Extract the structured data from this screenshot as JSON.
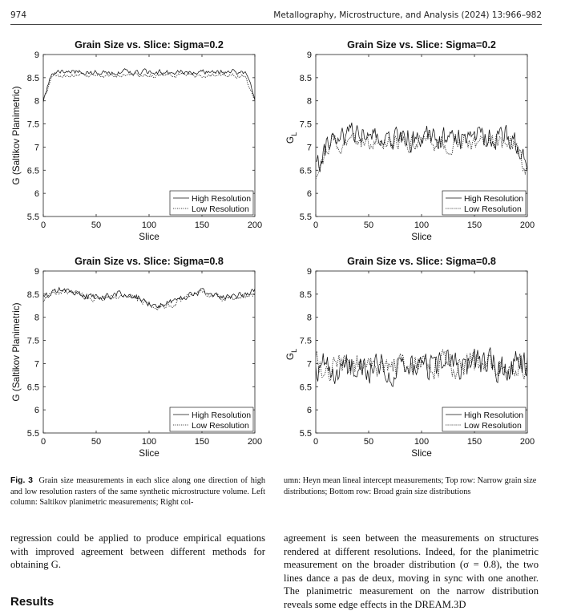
{
  "header": {
    "page_number": "974",
    "journal": "Metallography, Microstructure, and Analysis (2024) 13:966–982"
  },
  "chart_data": [
    {
      "type": "line",
      "title": "Grain Size vs. Slice: Sigma=0.2",
      "xlabel": "Slice",
      "ylabel": "G (Saltikov Planimetric)",
      "xlim": [
        0,
        200
      ],
      "ylim": [
        5.5,
        9
      ],
      "xticks": [
        0,
        50,
        100,
        150,
        200
      ],
      "yticks": [
        "5.5",
        "6",
        "6.5",
        "7",
        "7.5",
        "8",
        "8.5",
        "9"
      ],
      "legend": "bottom-right",
      "series": [
        {
          "name": "High Resolution",
          "style": "solid",
          "base": 8.62,
          "noise": 0.09,
          "seed": 3,
          "edge": 0.6,
          "edge_width": 8
        },
        {
          "name": "Low Resolution",
          "style": "dotted",
          "base": 8.55,
          "noise": 0.07,
          "seed": 7,
          "edge": 0.55,
          "edge_width": 9
        }
      ]
    },
    {
      "type": "line",
      "title": "Grain Size vs. Slice: Sigma=0.2",
      "xlabel": "Slice",
      "ylabel": "G_L",
      "xlim": [
        0,
        200
      ],
      "ylim": [
        5.5,
        9
      ],
      "xticks": [
        0,
        50,
        100,
        150,
        200
      ],
      "yticks": [
        "5.5",
        "6",
        "6.5",
        "7",
        "7.5",
        "8",
        "8.5",
        "9"
      ],
      "legend": "bottom-right",
      "series": [
        {
          "name": "High Resolution",
          "style": "solid",
          "base": 7.2,
          "noise": 0.42,
          "seed": 11,
          "edge": 0.7,
          "edge_width": 14
        },
        {
          "name": "Low Resolution",
          "style": "dotted",
          "base": 7.1,
          "noise": 0.3,
          "seed": 17,
          "edge": 0.7,
          "edge_width": 14
        }
      ]
    },
    {
      "type": "line",
      "title": "Grain Size vs. Slice: Sigma=0.8",
      "xlabel": "Slice",
      "ylabel": "G (Saltikov Planimetric)",
      "xlim": [
        0,
        200
      ],
      "ylim": [
        5.5,
        9
      ],
      "xticks": [
        0,
        50,
        100,
        150,
        200
      ],
      "yticks": [
        "5.5",
        "6",
        "6.5",
        "7",
        "7.5",
        "8",
        "8.5",
        "9"
      ],
      "legend": "bottom-right",
      "series": [
        {
          "name": "High Resolution",
          "style": "solid",
          "base": 8.45,
          "noise": 0.12,
          "seed": 23,
          "edge": 0,
          "edge_width": 1,
          "wave": 0.18
        },
        {
          "name": "Low Resolution",
          "style": "dotted",
          "base": 8.4,
          "noise": 0.1,
          "seed": 29,
          "edge": 0,
          "edge_width": 1,
          "wave": 0.18
        }
      ]
    },
    {
      "type": "line",
      "title": "Grain Size vs. Slice: Sigma=0.8",
      "xlabel": "Slice",
      "ylabel": "G_L",
      "xlim": [
        0,
        200
      ],
      "ylim": [
        5.5,
        9
      ],
      "xticks": [
        0,
        50,
        100,
        150,
        200
      ],
      "yticks": [
        "5.5",
        "6",
        "6.5",
        "7",
        "7.5",
        "8",
        "8.5",
        "9"
      ],
      "legend": "bottom-right",
      "series": [
        {
          "name": "High Resolution",
          "style": "solid",
          "base": 6.95,
          "noise": 0.5,
          "seed": 31,
          "edge": 0,
          "edge_width": 1
        },
        {
          "name": "Low Resolution",
          "style": "dotted",
          "base": 6.95,
          "noise": 0.42,
          "seed": 37,
          "edge": 0,
          "edge_width": 1
        }
      ]
    }
  ],
  "caption": {
    "label": "Fig. 3",
    "left_text": "Grain size measurements in each slice along one direction of high and low resolution rasters of the same synthetic microstructure volume. Left column: Saltikov planimetric measurements; Right col-",
    "right_text": "umn: Heyn mean lineal intercept measurements; Top row: Narrow grain size distributions; Bottom row: Broad grain size distributions"
  },
  "body": {
    "left_paragraph": "regression could be applied to produce empirical equations with improved agreement between different methods for obtaining G.",
    "results_heading": "Results",
    "right_paragraph": "agreement is seen between the measurements on structures rendered at different resolutions. Indeed, for the planimetric measurement on the broader distribution (σ = 0.8), the two lines dance a pas de deux, moving in sync with one another. The planimetric measurement on the narrow distribution reveals some edge effects in the DREAM.3D"
  }
}
